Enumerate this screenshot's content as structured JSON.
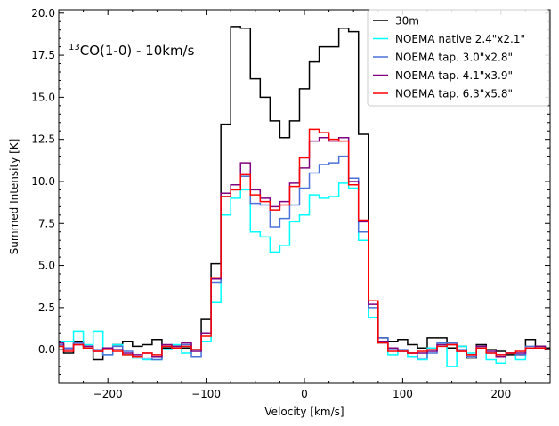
{
  "chart_data": {
    "type": "line",
    "drawstyle": "steps-mid",
    "title": "",
    "xlabel": "Velocity [km/s]",
    "ylabel": "Summed Intensity [K]",
    "xlim": [
      -250,
      250
    ],
    "ylim": [
      -2.0,
      20.2
    ],
    "xticks": [
      -200,
      -100,
      0,
      100,
      200
    ],
    "xtick_labels": [
      "−200",
      "−100",
      "0",
      "100",
      "200"
    ],
    "yticks": [
      0,
      2.5,
      5,
      7.5,
      10,
      12.5,
      15,
      17.5,
      20
    ],
    "ytick_labels": [
      "0.0",
      "2.5",
      "5.0",
      "7.5",
      "10.0",
      "12.5",
      "15.0",
      "17.5",
      "20.0"
    ],
    "annotation": {
      "sup": "13",
      "text": "CO(1-0) - 10km/s"
    },
    "legend_position": "upper-right",
    "x": [
      -250,
      -240,
      -230,
      -220,
      -210,
      -200,
      -190,
      -180,
      -170,
      -160,
      -150,
      -140,
      -130,
      -120,
      -110,
      -100,
      -90,
      -80,
      -70,
      -60,
      -50,
      -40,
      -30,
      -20,
      -10,
      0,
      10,
      20,
      30,
      40,
      50,
      60,
      70,
      80,
      90,
      100,
      110,
      120,
      130,
      140,
      150,
      160,
      170,
      180,
      190,
      200,
      210,
      220,
      230,
      240,
      250
    ],
    "series": [
      {
        "name": "30m",
        "color": "#000000",
        "values": [
          0.2,
          -0.2,
          0.5,
          0.1,
          -0.6,
          0.1,
          0.3,
          0.5,
          0.2,
          0.3,
          0.6,
          0.1,
          0.2,
          0.1,
          0.0,
          1.8,
          5.1,
          13.4,
          19.2,
          19.1,
          16.1,
          15.0,
          13.6,
          12.6,
          13.6,
          15.5,
          17.1,
          18.0,
          18.0,
          19.1,
          18.9,
          12.8,
          2.9,
          0.7,
          0.5,
          0.6,
          0.3,
          0.1,
          0.7,
          0.7,
          0.1,
          0.2,
          -0.5,
          0.3,
          0.0,
          -0.1,
          -0.3,
          -0.3,
          0.6,
          0.2,
          0.1
        ]
      },
      {
        "name": "NOEMA native 2.4\"x2.1\"",
        "color": "#00ffff",
        "values": [
          0.5,
          0.5,
          1.1,
          0.3,
          1.1,
          -0.3,
          0.3,
          -0.3,
          -0.5,
          -0.6,
          -0.6,
          0.0,
          0.3,
          -0.2,
          0.0,
          0.5,
          2.8,
          8.0,
          9.0,
          9.5,
          7.0,
          6.7,
          5.8,
          6.2,
          7.6,
          8.0,
          9.2,
          9.0,
          9.1,
          9.9,
          9.6,
          6.5,
          1.9,
          0.4,
          -0.3,
          -0.1,
          -0.4,
          -0.6,
          0.1,
          0.3,
          -1.0,
          0.2,
          -0.2,
          0.2,
          -0.6,
          -0.8,
          -0.2,
          -0.6,
          0.1,
          0.1,
          0.0
        ]
      },
      {
        "name": "NOEMA tap. 3.0\"x2.8\"",
        "color": "#4a72d8",
        "values": [
          0.3,
          0.1,
          0.4,
          0.2,
          0.0,
          -0.3,
          0.2,
          -0.1,
          -0.4,
          -0.5,
          -0.6,
          0.2,
          0.1,
          0.3,
          -0.4,
          1.0,
          4.0,
          9.1,
          9.5,
          10.3,
          8.7,
          8.6,
          7.3,
          7.8,
          8.6,
          9.6,
          10.5,
          11.0,
          11.1,
          11.5,
          10.2,
          7.0,
          2.5,
          0.7,
          0.0,
          0.0,
          -0.2,
          -0.5,
          -0.2,
          0.4,
          0.4,
          0.0,
          -0.4,
          0.2,
          -0.2,
          -0.3,
          -0.2,
          -0.3,
          0.2,
          0.1,
          0.0
        ]
      },
      {
        "name": "NOEMA tap. 4.1\"x3.9\"",
        "color": "#800080",
        "values": [
          0.4,
          0.0,
          0.3,
          0.2,
          -0.1,
          0.1,
          0.0,
          -0.2,
          -0.3,
          -0.2,
          -0.4,
          0.3,
          0.2,
          0.4,
          -0.1,
          1.0,
          4.2,
          9.3,
          9.8,
          11.1,
          9.5,
          9.0,
          8.5,
          8.8,
          9.9,
          10.8,
          12.4,
          12.6,
          12.4,
          12.6,
          10.0,
          7.6,
          2.7,
          0.5,
          0.1,
          -0.1,
          -0.2,
          -0.2,
          -0.1,
          0.3,
          0.3,
          -0.1,
          -0.3,
          0.2,
          -0.1,
          -0.4,
          -0.2,
          -0.2,
          0.1,
          0.2,
          0.0
        ]
      },
      {
        "name": "NOEMA tap. 6.3\"x5.8\"",
        "color": "#ff0000",
        "values": [
          0.2,
          -0.1,
          0.3,
          0.1,
          -0.1,
          0.0,
          -0.1,
          -0.3,
          -0.4,
          -0.2,
          -0.3,
          0.2,
          0.1,
          0.2,
          0.0,
          0.8,
          4.3,
          9.1,
          9.5,
          10.4,
          9.2,
          8.8,
          8.3,
          8.6,
          9.7,
          11.4,
          13.1,
          12.9,
          12.5,
          12.4,
          9.8,
          7.7,
          2.9,
          0.4,
          -0.1,
          -0.1,
          -0.2,
          -0.1,
          0.0,
          0.2,
          0.3,
          -0.1,
          -0.3,
          0.1,
          -0.2,
          -0.3,
          -0.2,
          -0.1,
          0.1,
          0.1,
          0.0
        ]
      }
    ]
  }
}
